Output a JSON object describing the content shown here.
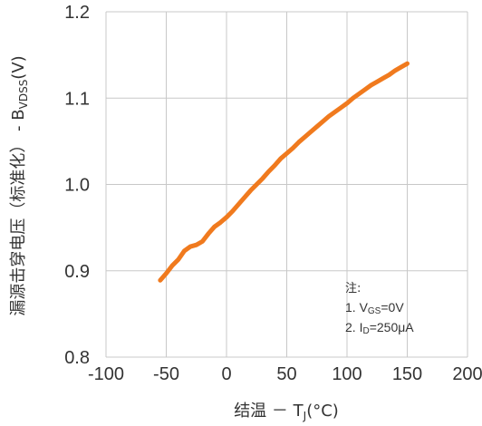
{
  "chart_data": {
    "type": "line",
    "x_label": "结温 － T",
    "x_label_sub": "J",
    "x_label_unit": "(°C)",
    "y_label": "漏源击穿电压（标准化） - B",
    "y_label_sub": "VDSS",
    "y_label_unit": "(V)",
    "xlim": [
      -100,
      200
    ],
    "ylim": [
      0.8,
      1.2
    ],
    "x_ticks": [
      -100,
      -50,
      0,
      50,
      100,
      150,
      200
    ],
    "y_ticks": [
      0.8,
      0.9,
      1.0,
      1.1,
      1.2
    ],
    "x_tick_labels": [
      "-100",
      "-50",
      "0",
      "50",
      "100",
      "150",
      "200"
    ],
    "y_tick_labels": [
      "0.8",
      "0.9",
      "1.0",
      "1.1",
      "1.2"
    ],
    "grid": true,
    "series": [
      {
        "color": "#f07a1e",
        "x": [
          -55,
          -50,
          -45,
          -40,
          -35,
          -30,
          -25,
          -20,
          -15,
          -10,
          -5,
          0,
          5,
          10,
          15,
          20,
          25,
          30,
          35,
          40,
          45,
          50,
          55,
          60,
          65,
          70,
          75,
          80,
          85,
          90,
          95,
          100,
          105,
          110,
          115,
          120,
          125,
          130,
          135,
          140,
          145,
          150
        ],
        "y": [
          0.889,
          0.897,
          0.906,
          0.913,
          0.923,
          0.928,
          0.93,
          0.934,
          0.943,
          0.951,
          0.956,
          0.962,
          0.969,
          0.977,
          0.985,
          0.993,
          1.0,
          1.007,
          1.015,
          1.022,
          1.03,
          1.036,
          1.042,
          1.049,
          1.055,
          1.061,
          1.067,
          1.073,
          1.079,
          1.084,
          1.089,
          1.094,
          1.1,
          1.105,
          1.11,
          1.115,
          1.119,
          1.123,
          1.127,
          1.132,
          1.136,
          1.14
        ]
      }
    ],
    "notes": {
      "title": "注:",
      "line1_prefix": "1. V",
      "line1_sub": "GS",
      "line1_suffix": "=0V",
      "line2_prefix": "2. I",
      "line2_sub": "D",
      "line2_suffix": "=250μA"
    }
  }
}
